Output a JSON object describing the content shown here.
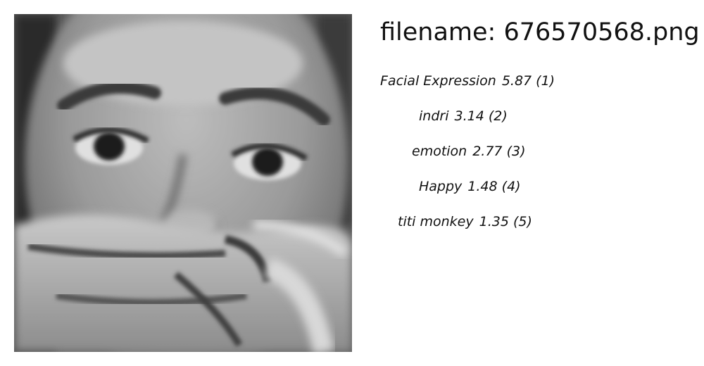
{
  "file": {
    "prefix": "filename: ",
    "name": "676570568.png"
  },
  "image": {
    "subject": "grayscale close-up face with hand covering mouth",
    "icon": "face-photo"
  },
  "predictions": [
    {
      "rank": 1,
      "label": "Facial Expression",
      "score": "5.87",
      "rank_text": "(1)"
    },
    {
      "rank": 2,
      "label": "indri",
      "score": "3.14",
      "rank_text": "(2)"
    },
    {
      "rank": 3,
      "label": "emotion",
      "score": "2.77",
      "rank_text": "(3)"
    },
    {
      "rank": 4,
      "label": "Happy",
      "score": "1.48",
      "rank_text": "(4)"
    },
    {
      "rank": 5,
      "label": "titi monkey",
      "score": "1.35",
      "rank_text": "(5)"
    }
  ]
}
